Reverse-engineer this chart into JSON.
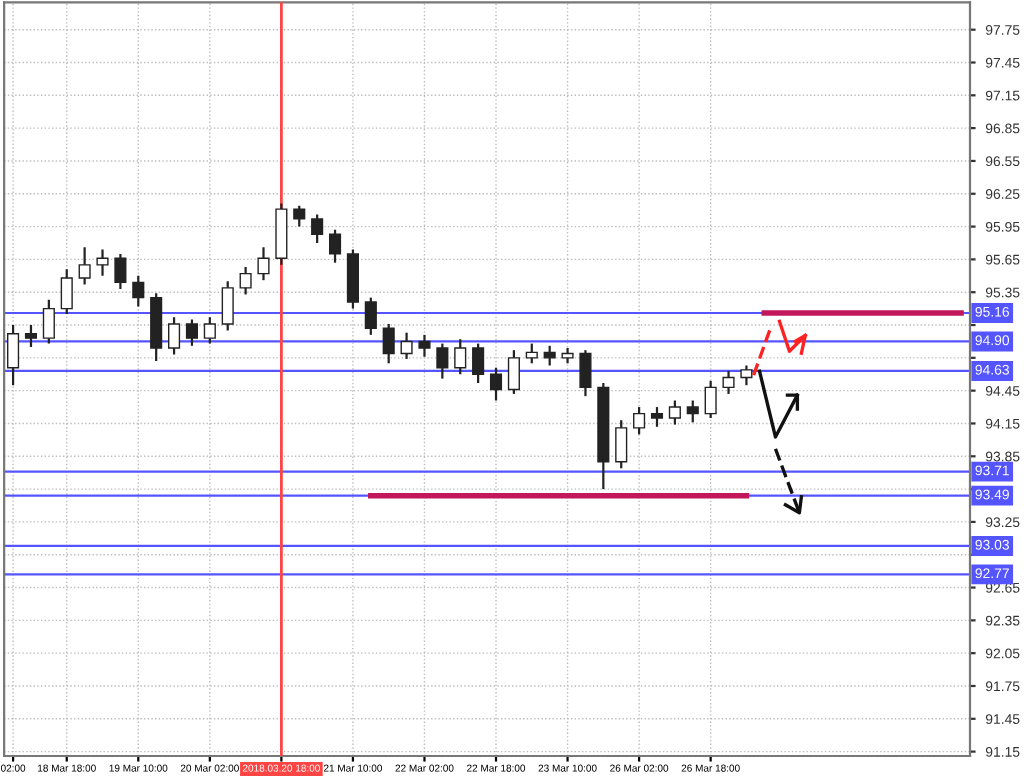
{
  "chart_data": {
    "type": "candlestick",
    "categories": [
      "02:00",
      null,
      null,
      "18 Mar 18:00",
      null,
      null,
      null,
      "19 Mar 10:00",
      null,
      null,
      null,
      "20 Mar 02:00",
      null,
      null,
      null,
      "2018.03.20 18:00",
      null,
      null,
      null,
      "21 Mar 10:00",
      null,
      null,
      null,
      "22 Mar 02:00",
      null,
      null,
      null,
      "22 Mar 18:00",
      null,
      null,
      null,
      "23 Mar 10:00",
      null,
      null,
      null,
      "26 Mar 02:00",
      null,
      null,
      null,
      "26 Mar 18:00",
      null,
      null,
      null,
      null,
      null,
      null,
      null,
      null,
      null,
      null,
      null,
      null,
      null,
      null
    ],
    "color": "#222222",
    "ohlc": [
      [
        94.66,
        95.05,
        94.5,
        94.97
      ],
      [
        94.97,
        95.05,
        94.85,
        94.93
      ],
      [
        94.93,
        95.28,
        94.88,
        95.2
      ],
      [
        95.2,
        95.56,
        95.15,
        95.48
      ],
      [
        95.48,
        95.76,
        95.42,
        95.6
      ],
      [
        95.6,
        95.74,
        95.5,
        95.66
      ],
      [
        95.66,
        95.7,
        95.38,
        95.44
      ],
      [
        95.44,
        95.5,
        95.22,
        95.3
      ],
      [
        95.3,
        95.34,
        94.72,
        94.84
      ],
      [
        94.84,
        95.12,
        94.78,
        95.06
      ],
      [
        95.06,
        95.1,
        94.86,
        94.93
      ],
      [
        94.93,
        95.12,
        94.88,
        95.06
      ],
      [
        95.06,
        95.45,
        95.0,
        95.39
      ],
      [
        95.39,
        95.58,
        95.33,
        95.52
      ],
      [
        95.52,
        95.76,
        95.46,
        95.66
      ],
      [
        95.66,
        96.16,
        95.6,
        96.11
      ],
      [
        96.11,
        96.14,
        95.95,
        96.02
      ],
      [
        96.02,
        96.06,
        95.8,
        95.88
      ],
      [
        95.88,
        95.92,
        95.62,
        95.7
      ],
      [
        95.7,
        95.74,
        95.2,
        95.26
      ],
      [
        95.26,
        95.3,
        94.96,
        95.02
      ],
      [
        95.02,
        95.06,
        94.7,
        94.79
      ],
      [
        94.79,
        94.98,
        94.74,
        94.9
      ],
      [
        94.9,
        94.96,
        94.76,
        94.84
      ],
      [
        94.84,
        94.88,
        94.56,
        94.66
      ],
      [
        94.66,
        94.92,
        94.6,
        94.84
      ],
      [
        94.84,
        94.88,
        94.52,
        94.6
      ],
      [
        94.6,
        94.66,
        94.36,
        94.46
      ],
      [
        94.46,
        94.82,
        94.42,
        94.75
      ],
      [
        94.75,
        94.88,
        94.7,
        94.8
      ],
      [
        94.8,
        94.86,
        94.68,
        94.75
      ],
      [
        94.75,
        94.84,
        94.7,
        94.79
      ],
      [
        94.79,
        94.82,
        94.4,
        94.48
      ],
      [
        94.48,
        94.52,
        93.55,
        93.8
      ],
      [
        93.8,
        94.18,
        93.74,
        94.11
      ],
      [
        94.11,
        94.3,
        94.05,
        94.24
      ],
      [
        94.24,
        94.3,
        94.12,
        94.2
      ],
      [
        94.2,
        94.36,
        94.14,
        94.3
      ],
      [
        94.3,
        94.36,
        94.16,
        94.24
      ],
      [
        94.24,
        94.54,
        94.2,
        94.48
      ],
      [
        94.48,
        94.63,
        94.42,
        94.57
      ],
      [
        94.57,
        94.68,
        94.5,
        94.64
      ],
      null,
      null,
      null,
      null,
      null,
      null,
      null,
      null,
      null,
      null,
      null,
      null
    ],
    "series": [
      {
        "type": "line",
        "color": "#c2185b",
        "values": [
          null,
          null,
          null,
          null,
          null,
          null,
          null,
          null,
          null,
          null,
          null,
          null,
          null,
          null,
          null,
          null,
          null,
          null,
          null,
          null,
          93.49,
          93.49,
          93.49,
          93.49,
          93.49,
          93.49,
          93.49,
          93.49,
          93.49,
          93.49,
          93.49,
          93.49,
          93.49,
          93.49,
          93.49,
          93.49,
          93.49,
          93.49,
          93.49,
          93.49,
          93.49,
          93.49,
          null,
          null,
          null,
          null,
          null,
          null,
          null,
          null,
          null,
          null,
          null,
          null
        ]
      },
      {
        "type": "line",
        "color": "#c2185b",
        "values": [
          null,
          null,
          null,
          null,
          null,
          null,
          null,
          null,
          null,
          null,
          null,
          null,
          null,
          null,
          null,
          null,
          null,
          null,
          null,
          null,
          null,
          null,
          null,
          null,
          null,
          null,
          null,
          null,
          null,
          null,
          null,
          null,
          null,
          null,
          null,
          null,
          null,
          null,
          null,
          null,
          null,
          null,
          95.16,
          95.16,
          95.16,
          95.16,
          95.16,
          95.16,
          95.16,
          95.16,
          95.16,
          95.16,
          95.16,
          95.16
        ]
      }
    ],
    "ylim": [
      91.11,
      98.0
    ],
    "yticks": [
      91.15,
      91.45,
      91.75,
      92.05,
      92.35,
      92.65,
      {
        "value": 92.95,
        "label": null
      },
      93.25,
      {
        "value": 93.55,
        "label": null
      },
      93.85,
      94.15,
      94.45,
      {
        "value": 94.75,
        "label": null
      },
      {
        "value": 95.05,
        "label": null
      },
      95.35,
      95.65,
      95.95,
      96.25,
      96.55,
      96.85,
      97.15,
      97.45,
      97.75
    ],
    "ref_lines": [
      {
        "axis": "y",
        "value": 95.16,
        "label": "95.16",
        "color": "#5555ff"
      },
      {
        "axis": "y",
        "value": 94.9,
        "label": "94.90",
        "color": "#5555ff"
      },
      {
        "axis": "y",
        "value": 94.63,
        "label": "94.63",
        "color": "#5555ff"
      },
      {
        "axis": "y",
        "value": 93.71,
        "label": "93.71",
        "color": "#5555ff"
      },
      {
        "axis": "y",
        "value": 93.49,
        "label": "93.49",
        "color": "#5555ff"
      },
      {
        "axis": "y",
        "value": 93.03,
        "label": "93.03",
        "color": "#5555ff"
      },
      {
        "axis": "y",
        "value": 92.77,
        "label": "92.77",
        "color": "#5555ff"
      },
      {
        "axis": "x",
        "value": "2018.03.20 18:00",
        "color": "#ff4444"
      }
    ],
    "grid": true
  }
}
